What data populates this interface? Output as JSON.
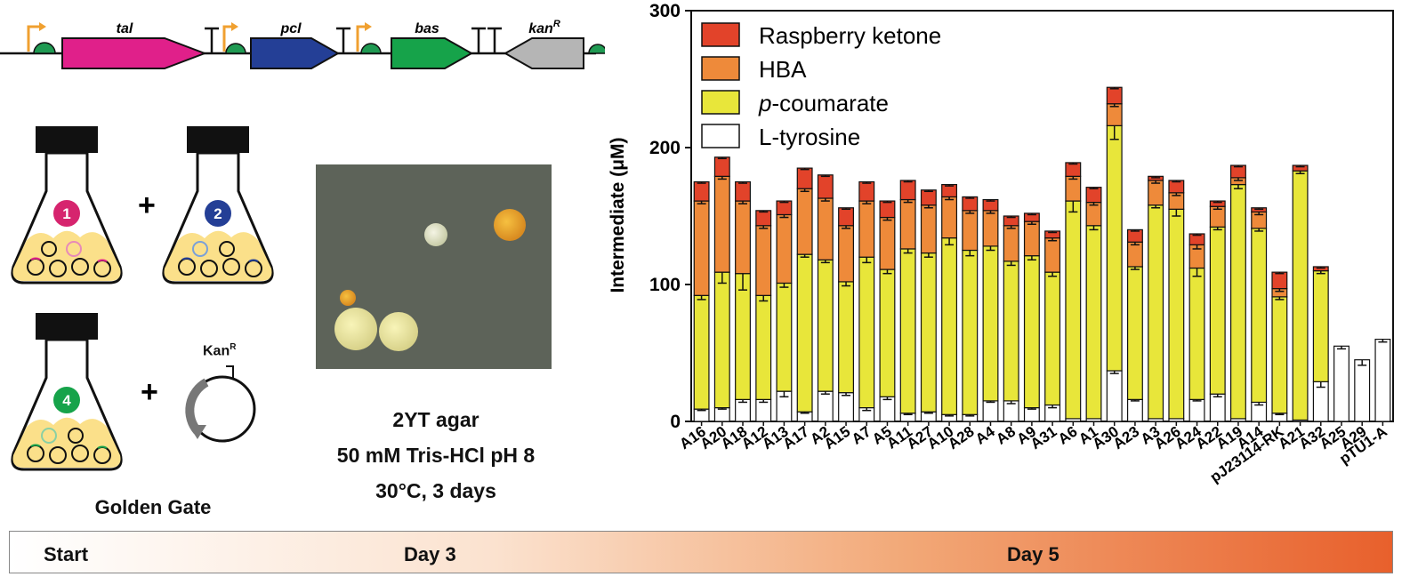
{
  "construct": {
    "genes": [
      "tal",
      "pcl",
      "bas"
    ],
    "marker": "kan",
    "marker_sup": "R",
    "colors": {
      "tal": "#e0208a",
      "pcl": "#243f96",
      "bas": "#16a34a",
      "kan": "#b5b5b5",
      "promoter": "#f0a030",
      "rbs": "#1f9a52"
    }
  },
  "flasks": {
    "numbers": [
      "1",
      "2",
      "4"
    ],
    "number_colors": [
      "#d6246e",
      "#243f96",
      "#16a34a"
    ],
    "plus": "+",
    "kanr_label": "Kan",
    "kanr_sup": "R",
    "caption": "Golden Gate"
  },
  "plate": {
    "lines": [
      "2YT agar",
      "50 mM Tris-HCl pH 8",
      "30°C, 3 days"
    ]
  },
  "timeline": {
    "labels": [
      "Start",
      "Day 3",
      "Day 5"
    ]
  },
  "chart_data": {
    "type": "bar",
    "stacked": true,
    "ylabel_prefix": "Intermediate (",
    "ylabel_mu": "μ",
    "ylabel_suffix": "M)",
    "ylim": [
      0,
      300
    ],
    "yticks": [
      0,
      100,
      200,
      300
    ],
    "categories": [
      "A16",
      "A20",
      "A18",
      "A12",
      "A13",
      "A17",
      "A2",
      "A15",
      "A7",
      "A5",
      "A11",
      "A27",
      "A10",
      "A28",
      "A4",
      "A8",
      "A9",
      "A31",
      "A6",
      "A1",
      "A30",
      "A23",
      "A3",
      "A26",
      "A24",
      "A22",
      "A19",
      "A14",
      "pJ23114-RK",
      "A21",
      "A32",
      "A25",
      "A29",
      "pTU1-A"
    ],
    "legend": [
      {
        "name": "Raspberry ketone",
        "prefix": "",
        "italic": "",
        "rest": "Raspberry ketone",
        "color": "#e2432a"
      },
      {
        "name": "HBA",
        "prefix": "",
        "italic": "",
        "rest": "HBA",
        "color": "#ee8a3a"
      },
      {
        "name": "p-coumarate",
        "prefix": "",
        "italic": "p",
        "rest": "-coumarate",
        "color": "#e8e63a"
      },
      {
        "name": "L-tyrosine",
        "prefix": "",
        "italic": "",
        "rest": "L-tyrosine",
        "color": "#ffffff"
      }
    ],
    "series": [
      {
        "name": "L-tyrosine",
        "values": [
          9,
          10,
          16,
          16,
          22,
          7,
          22,
          21,
          10,
          18,
          6,
          7,
          5,
          5,
          15,
          15,
          10,
          12,
          2,
          2,
          37,
          16,
          2,
          2,
          16,
          20,
          2,
          14,
          6,
          1,
          29,
          55,
          45,
          60
        ]
      },
      {
        "name": "p-coumarate",
        "values": [
          83,
          99,
          92,
          76,
          79,
          115,
          96,
          81,
          110,
          93,
          120,
          116,
          129,
          120,
          113,
          102,
          111,
          97,
          159,
          141,
          179,
          97,
          156,
          153,
          96,
          122,
          171,
          127,
          85,
          182,
          81,
          0,
          0,
          0
        ]
      },
      {
        "name": "HBA",
        "values": [
          69,
          70,
          53,
          51,
          50,
          48,
          45,
          41,
          41,
          38,
          36,
          35,
          30,
          29,
          26,
          26,
          25,
          25,
          18,
          17,
          16,
          18,
          18,
          12,
          17,
          15,
          5,
          12,
          6,
          0,
          0,
          0,
          0,
          0
        ]
      },
      {
        "name": "Raspberry ketone",
        "values": [
          14,
          14,
          14,
          11,
          10,
          15,
          17,
          13,
          14,
          12,
          14,
          11,
          9,
          10,
          8,
          7,
          6,
          5,
          10,
          11,
          12,
          9,
          3,
          9,
          8,
          4,
          9,
          3,
          12,
          4,
          3,
          0,
          0,
          0
        ]
      }
    ],
    "errors": [
      {
        "name": "L-tyrosine",
        "values": [
          1,
          1,
          2,
          2,
          4,
          1,
          2,
          2,
          2,
          2,
          1,
          1,
          1,
          1,
          1,
          2,
          1,
          2,
          0,
          0,
          2,
          1,
          0,
          0,
          1,
          2,
          0,
          2,
          1,
          0,
          4,
          2,
          4,
          2
        ]
      },
      {
        "name": "p-coumarate",
        "values": [
          3,
          8,
          12,
          4,
          3,
          2,
          2,
          3,
          4,
          3,
          3,
          3,
          5,
          4,
          3,
          3,
          3,
          3,
          8,
          3,
          10,
          2,
          2,
          5,
          6,
          2,
          3,
          2,
          2,
          2,
          2,
          0,
          0,
          0
        ]
      },
      {
        "name": "HBA",
        "values": [
          2,
          2,
          2,
          2,
          2,
          2,
          2,
          2,
          2,
          2,
          2,
          2,
          2,
          2,
          2,
          2,
          2,
          2,
          2,
          2,
          2,
          2,
          2,
          2,
          3,
          2,
          2,
          2,
          2,
          0,
          0,
          0,
          0,
          0
        ]
      },
      {
        "name": "Raspberry ketone",
        "values": [
          1,
          1,
          1,
          1,
          1,
          1,
          1,
          1,
          1,
          1,
          1,
          1,
          1,
          1,
          1,
          1,
          1,
          1,
          1,
          1,
          1,
          1,
          1,
          1,
          1,
          1,
          1,
          1,
          1,
          1,
          1,
          0,
          0,
          0
        ]
      }
    ]
  }
}
